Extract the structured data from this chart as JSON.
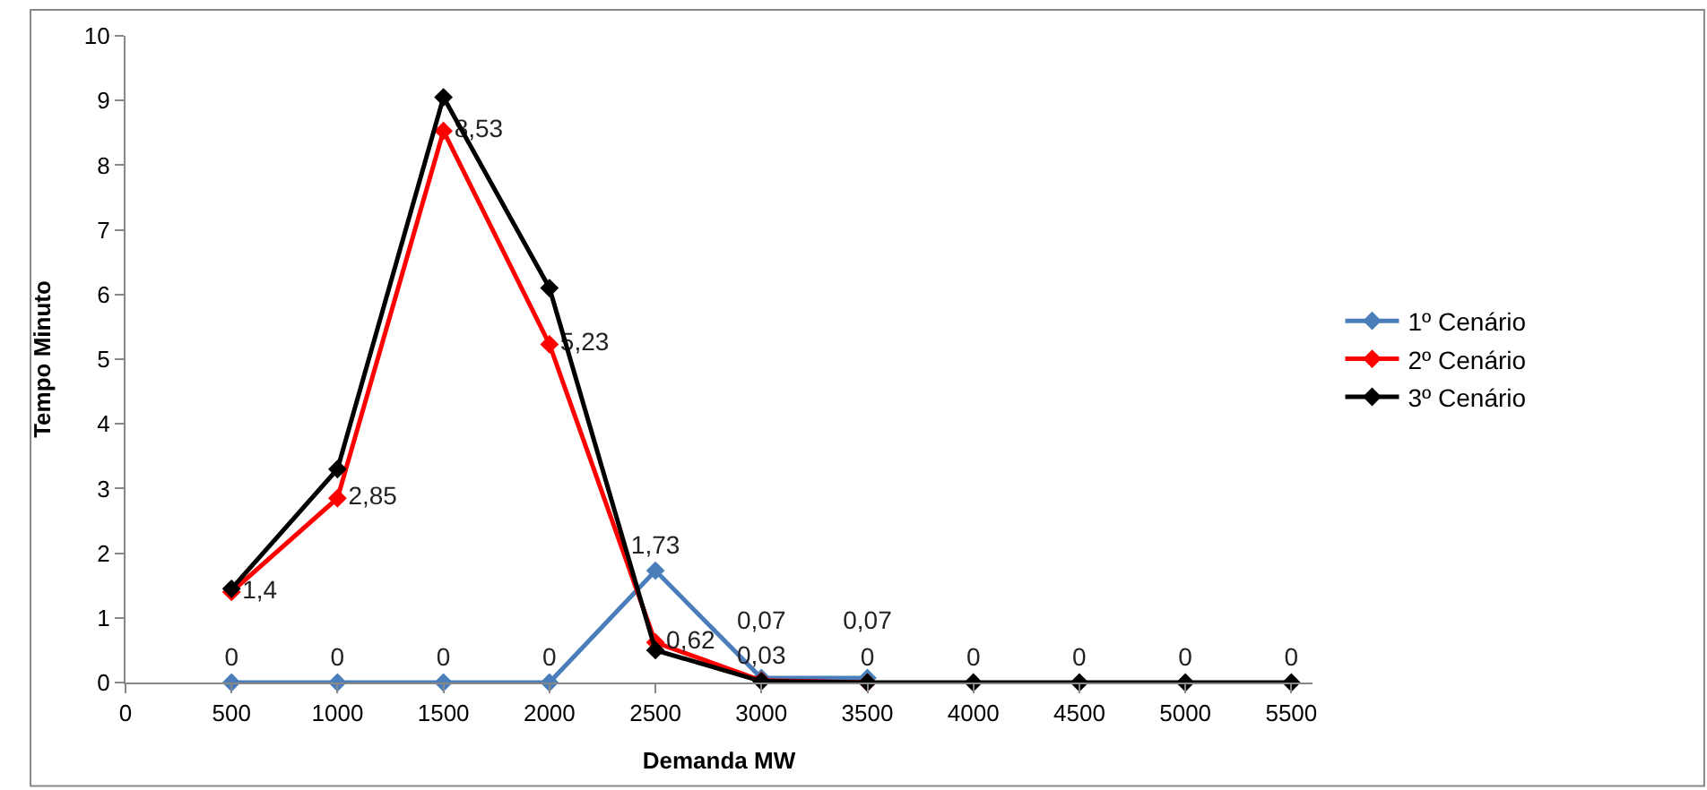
{
  "chart_data": {
    "type": "line",
    "xlabel": "Demanda MW",
    "ylabel": "Tempo Minuto",
    "x": [
      500,
      1000,
      1500,
      2000,
      2500,
      3000,
      3500,
      4000,
      4500,
      5000,
      5500
    ],
    "series": [
      {
        "name": "1º Cenário",
        "color": "#4a7ebb",
        "values": [
          0,
          0,
          0,
          0,
          1.73,
          0.07,
          0.07,
          null,
          null,
          null,
          null
        ],
        "value_labels": [
          "0",
          "0",
          "0",
          "0",
          "1,73",
          "0,07",
          "0,07",
          null,
          null,
          null,
          null
        ]
      },
      {
        "name": "2º Cenário",
        "color": "#ff0000",
        "values": [
          1.4,
          2.85,
          8.53,
          5.23,
          0.62,
          0.03,
          0,
          null,
          null,
          null,
          null
        ],
        "value_labels": [
          "1,4",
          "2,85",
          "8,53",
          "5,23",
          "0,62",
          "0,03",
          "0",
          null,
          null,
          null,
          null
        ]
      },
      {
        "name": "3º Cenário",
        "color": "#000000",
        "values": [
          1.45,
          3.3,
          9.05,
          6.1,
          0.5,
          0.02,
          0,
          0,
          0,
          0,
          0
        ],
        "value_labels": [
          null,
          null,
          null,
          null,
          null,
          null,
          null,
          "0",
          "0",
          "0",
          "0"
        ]
      }
    ],
    "xlim": [
      0,
      5600
    ],
    "xticks": [
      0,
      500,
      1000,
      1500,
      2000,
      2500,
      3000,
      3500,
      4000,
      4500,
      5000,
      5500
    ],
    "ylim": [
      0,
      10
    ],
    "yticks": [
      0,
      1,
      2,
      3,
      4,
      5,
      6,
      7,
      8,
      9,
      10
    ],
    "legend": "right",
    "marker": "diamond",
    "line_style": "solid"
  }
}
